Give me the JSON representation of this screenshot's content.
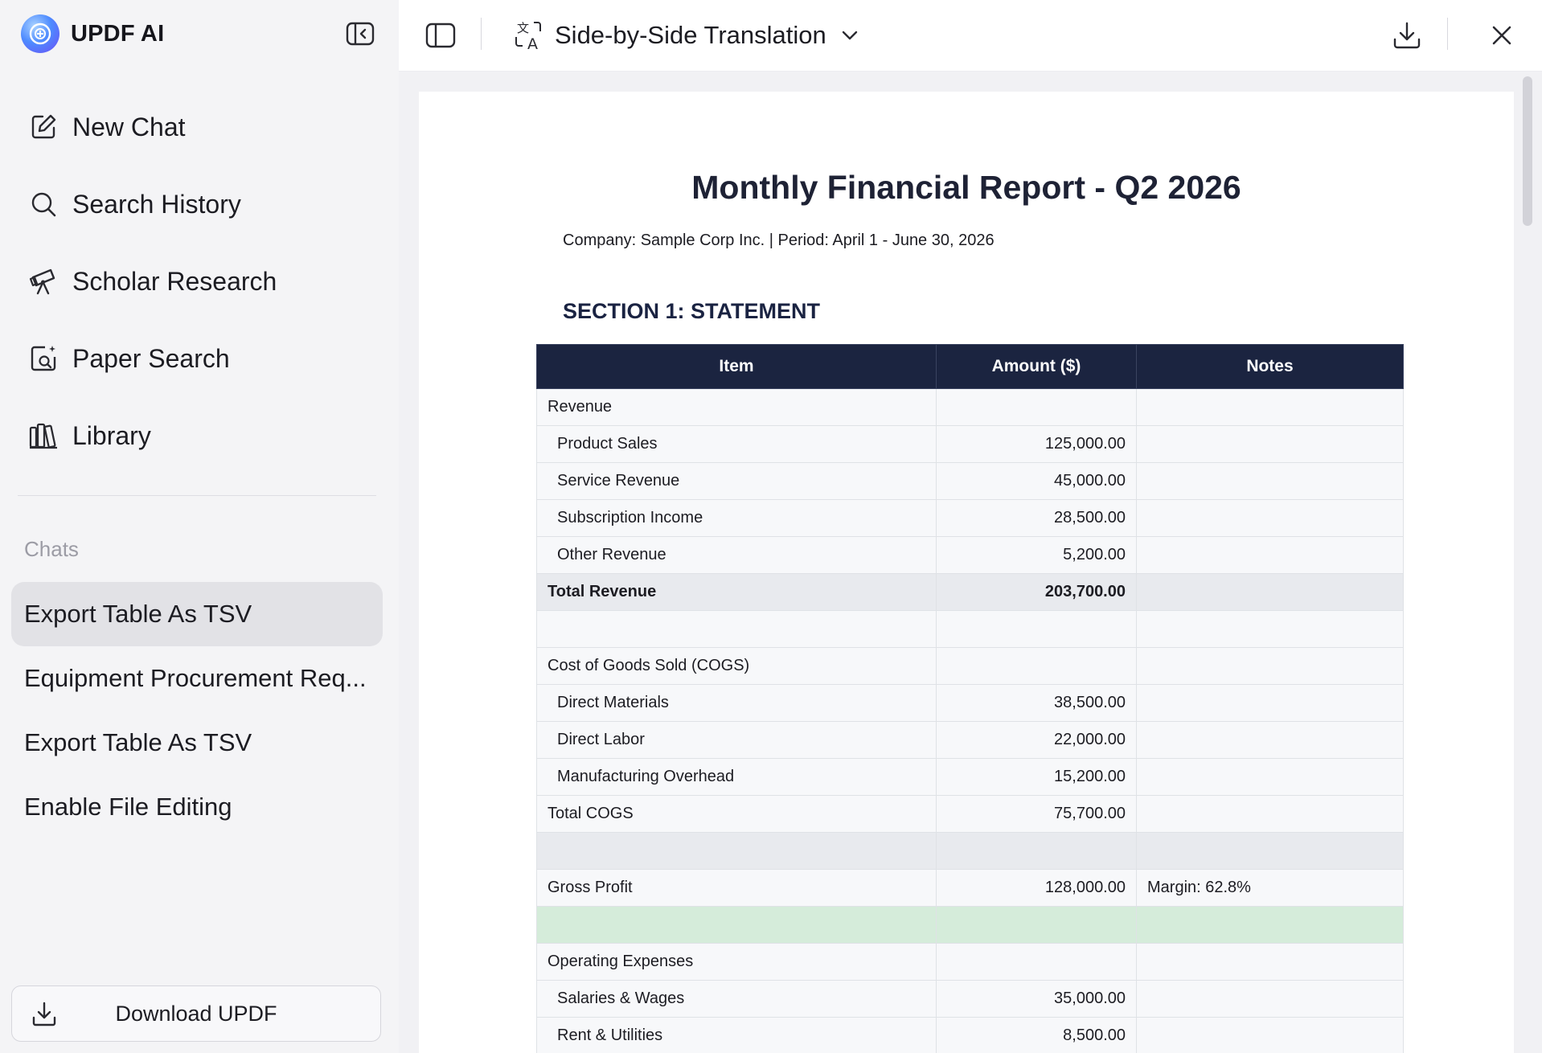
{
  "sidebar": {
    "brand": "UPDF AI",
    "nav": [
      {
        "label": "New Chat",
        "icon": "edit-icon"
      },
      {
        "label": "Search History",
        "icon": "search-icon"
      },
      {
        "label": "Scholar Research",
        "icon": "telescope-icon"
      },
      {
        "label": "Paper Search",
        "icon": "document-search-icon"
      },
      {
        "label": "Library",
        "icon": "library-icon"
      }
    ],
    "chats_label": "Chats",
    "chats": [
      {
        "label": "Export Table As TSV",
        "active": true
      },
      {
        "label": "Equipment Procurement Req...",
        "active": false
      },
      {
        "label": "Export Table As TSV",
        "active": false
      },
      {
        "label": "Enable File Editing",
        "active": false
      }
    ],
    "download_label": "Download UPDF"
  },
  "topbar": {
    "mode_label": "Side-by-Side Translation"
  },
  "document": {
    "title": "Monthly Financial Report - Q2 2026",
    "subtitle": "Company: Sample Corp Inc. | Period: April 1 - June 30, 2026",
    "section": "SECTION 1: STATEMENT",
    "headers": [
      "Item",
      "Amount ($)",
      "Notes"
    ],
    "rows": [
      {
        "item": "Revenue",
        "amount": "",
        "notes": "",
        "style": "plain",
        "indent": false
      },
      {
        "item": "Product Sales",
        "amount": "125,000.00",
        "notes": "",
        "style": "plain",
        "indent": true
      },
      {
        "item": "Service Revenue",
        "amount": "45,000.00",
        "notes": "",
        "style": "plain",
        "indent": true
      },
      {
        "item": "Subscription Income",
        "amount": "28,500.00",
        "notes": "",
        "style": "plain",
        "indent": true
      },
      {
        "item": "Other Revenue",
        "amount": "5,200.00",
        "notes": "",
        "style": "plain",
        "indent": true
      },
      {
        "item": "Total Revenue",
        "amount": "203,700.00",
        "notes": "",
        "style": "total",
        "indent": false
      },
      {
        "item": "",
        "amount": "",
        "notes": "",
        "style": "plain",
        "indent": false
      },
      {
        "item": "Cost of Goods Sold (COGS)",
        "amount": "",
        "notes": "",
        "style": "plain",
        "indent": false
      },
      {
        "item": "Direct Materials",
        "amount": "38,500.00",
        "notes": "",
        "style": "plain",
        "indent": true
      },
      {
        "item": "Direct Labor",
        "amount": "22,000.00",
        "notes": "",
        "style": "plain",
        "indent": true
      },
      {
        "item": "Manufacturing Overhead",
        "amount": "15,200.00",
        "notes": "",
        "style": "plain",
        "indent": true
      },
      {
        "item": "Total COGS",
        "amount": "75,700.00",
        "notes": "",
        "style": "plain",
        "indent": false
      },
      {
        "item": "",
        "amount": "",
        "notes": "",
        "style": "gray",
        "indent": false
      },
      {
        "item": "Gross Profit",
        "amount": "128,000.00",
        "notes": "Margin: 62.8%",
        "style": "plain",
        "indent": false
      },
      {
        "item": "",
        "amount": "",
        "notes": "",
        "style": "green",
        "indent": false
      },
      {
        "item": "Operating Expenses",
        "amount": "",
        "notes": "",
        "style": "plain",
        "indent": false
      },
      {
        "item": "Salaries & Wages",
        "amount": "35,000.00",
        "notes": "",
        "style": "plain",
        "indent": true
      },
      {
        "item": "Rent & Utilities",
        "amount": "8,500.00",
        "notes": "",
        "style": "plain",
        "indent": true
      }
    ]
  },
  "colors": {
    "table_header": "#1b2440",
    "total_row": "#e8eaee",
    "highlight_green": "#d5ecda",
    "active_chat": "#e2e2e6"
  }
}
